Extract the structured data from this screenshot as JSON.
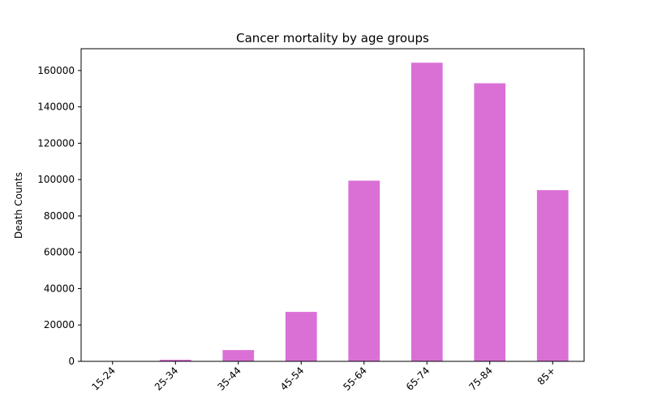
{
  "chart_data": {
    "type": "bar",
    "title": "Cancer mortality by age groups",
    "xlabel": "",
    "ylabel": "Death Counts",
    "categories": [
      "15-24",
      "25-34",
      "35-44",
      "45-54",
      "55-64",
      "65-74",
      "75-84",
      "85+"
    ],
    "values": [
      150,
      900,
      6200,
      27200,
      99400,
      164300,
      153000,
      94200
    ],
    "ylim": [
      0,
      172000
    ],
    "yticks": [
      0,
      20000,
      40000,
      60000,
      80000,
      100000,
      120000,
      140000,
      160000
    ],
    "bar_color": "#da70d6",
    "grid": false,
    "legend": "none"
  }
}
